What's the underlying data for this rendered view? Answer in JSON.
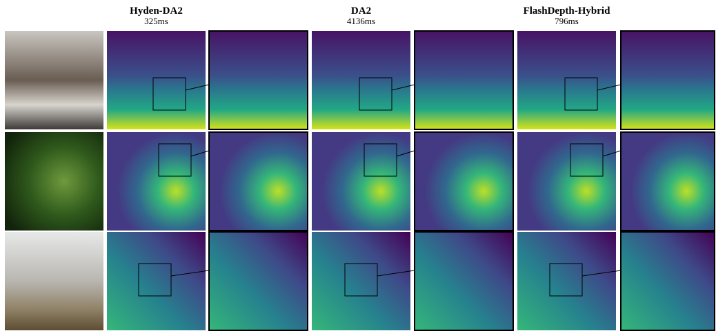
{
  "header": {
    "methods": [
      {
        "name": "Hyden-DA2",
        "time": "325ms"
      },
      {
        "name": "DA2",
        "time": "4136ms"
      },
      {
        "name": "FlashDepth-Hybrid",
        "time": "796ms"
      }
    ]
  }
}
